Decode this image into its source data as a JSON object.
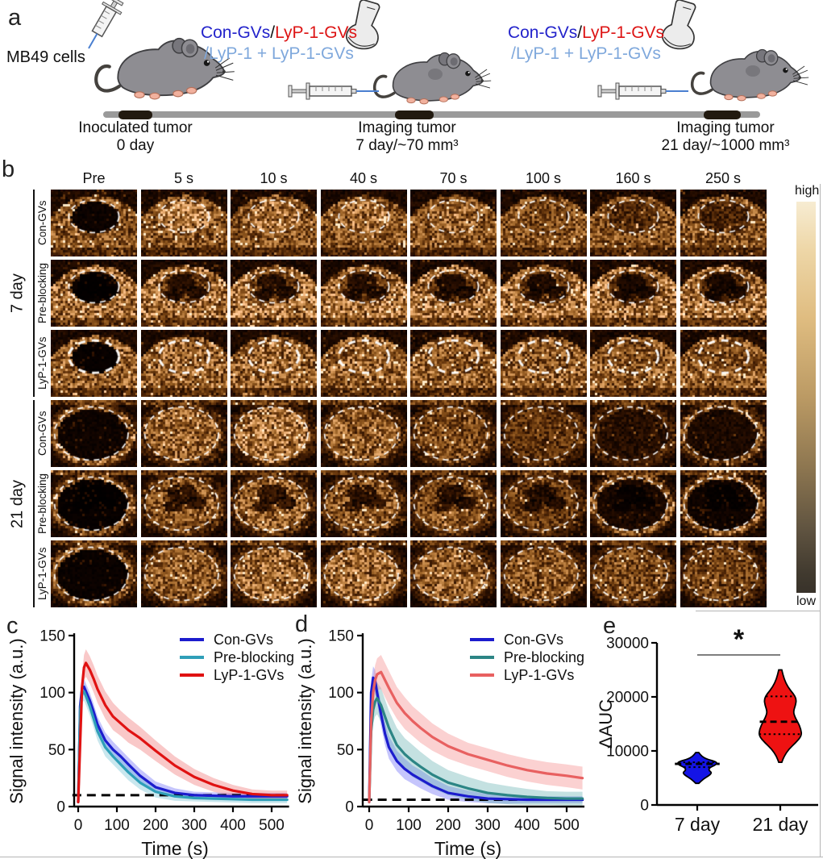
{
  "panel_a": {
    "label": "a",
    "mb49_label": "MB49 cells",
    "agents": {
      "blue": "Con-GVs",
      "slash": "/",
      "red": "LyP-1-GVs",
      "line2": "/LyP-1 + LyP-1-GVs"
    },
    "agent_colors": {
      "blue": "#2323cb",
      "red": "#dd1414",
      "light_blue": "#7fa8dc",
      "slash": "#111111"
    },
    "milestones": [
      {
        "line1": "Inoculated tumor",
        "line2": "0 day"
      },
      {
        "line1": "Imaging tumor",
        "line2": "7 day/~70 mm³"
      },
      {
        "line1": "Imaging tumor",
        "line2": "21 day/~1000 mm³"
      }
    ]
  },
  "panel_b": {
    "label": "b",
    "column_headers": [
      "Pre",
      "5 s",
      "10 s",
      "40 s",
      "70 s",
      "100 s",
      "160 s",
      "250 s"
    ],
    "row_groups": [
      {
        "label": "7 day",
        "rows": [
          "Con-GVs",
          "Pre-blocking",
          "LyP-1-GVs"
        ]
      },
      {
        "label": "21 day",
        "rows": [
          "Con-GVs",
          "Pre-blocking",
          "LyP-1-GVs"
        ]
      }
    ],
    "colorbar": {
      "high": "high",
      "low": "low"
    },
    "cells": [
      {
        "type": "dome",
        "outer": 0.55,
        "patches": false,
        "bold_dash": false,
        "interior": [
          0.05,
          0.72,
          0.7,
          0.66,
          0.62,
          0.5,
          0.34,
          0.3
        ]
      },
      {
        "type": "dome",
        "outer": 0.68,
        "patches": true,
        "bold_dash": false,
        "interior": [
          0.04,
          0.45,
          0.45,
          0.42,
          0.4,
          0.38,
          0.32,
          0.3
        ]
      },
      {
        "type": "dome",
        "outer": 0.6,
        "patches": false,
        "bold_dash": true,
        "interior": [
          0.03,
          0.62,
          0.66,
          0.62,
          0.58,
          0.55,
          0.52,
          0.5
        ]
      },
      {
        "type": "round",
        "outer": 0.32,
        "patches": false,
        "bold_dash": false,
        "interior": [
          0.06,
          0.62,
          0.68,
          0.6,
          0.52,
          0.38,
          0.16,
          0.12
        ]
      },
      {
        "type": "round",
        "outer": 0.3,
        "patches": true,
        "bold_dash": false,
        "interior": [
          0.03,
          0.55,
          0.6,
          0.55,
          0.52,
          0.42,
          0.1,
          0.06
        ]
      },
      {
        "type": "round",
        "outer": 0.32,
        "patches": false,
        "bold_dash": false,
        "interior": [
          0.04,
          0.58,
          0.64,
          0.64,
          0.6,
          0.56,
          0.5,
          0.46
        ]
      }
    ]
  },
  "chart_data": [
    {
      "id": "c",
      "panel_label": "c",
      "type": "line",
      "xlabel": "Time (s)",
      "ylabel": "Signal intensity (a.u.)",
      "xlim": [
        -20,
        545
      ],
      "ylim": [
        0,
        152
      ],
      "xticks": [
        0,
        100,
        200,
        300,
        400,
        500
      ],
      "yticks": [
        0,
        50,
        100,
        150
      ],
      "baseline": 10,
      "grid": false,
      "legend_position": "top-right",
      "x": [
        0,
        5,
        10,
        15,
        20,
        30,
        40,
        50,
        70,
        90,
        110,
        130,
        160,
        200,
        250,
        300,
        350,
        400,
        450,
        500,
        540
      ],
      "series": [
        {
          "name": "Con-GVs",
          "color": "#1c1ccd",
          "band_color": "rgba(90,90,245,0.35)",
          "values": [
            4,
            88,
            104,
            105,
            101,
            93,
            83,
            72,
            58,
            50,
            44,
            37,
            27,
            17,
            12,
            10,
            9.5,
            9,
            9,
            9,
            9
          ],
          "band": [
            2,
            7,
            7,
            7,
            7,
            7,
            7,
            7,
            7,
            7,
            6,
            6,
            6,
            5,
            4,
            3,
            3,
            3,
            3,
            3,
            3
          ]
        },
        {
          "name": "Pre-blocking",
          "color": "#2f9fb8",
          "band_color": "rgba(100,185,205,0.35)",
          "values": [
            4,
            84,
            99,
            101,
            97,
            88,
            77,
            66,
            52,
            44,
            37,
            30,
            21,
            13,
            9,
            7.5,
            7,
            6.5,
            6,
            6,
            6
          ],
          "band": [
            2,
            8,
            8,
            8,
            8,
            8,
            8,
            8,
            8,
            7,
            7,
            7,
            6,
            5,
            4,
            3,
            3,
            3,
            3,
            3,
            3
          ]
        },
        {
          "name": "LyP-1-GVs",
          "color": "#e01212",
          "band_color": "rgba(240,110,110,0.38)",
          "values": [
            4,
            55,
            105,
            122,
            126,
            120,
            112,
            103,
            89,
            79,
            73,
            67,
            60,
            49,
            36,
            26,
            19,
            14,
            11,
            10,
            10
          ],
          "band": [
            2,
            8,
            10,
            11,
            12,
            12,
            12,
            12,
            12,
            12,
            11,
            11,
            10,
            9,
            8,
            7,
            6,
            5,
            4,
            4,
            4
          ]
        }
      ]
    },
    {
      "id": "d",
      "panel_label": "d",
      "type": "line",
      "xlabel": "Time (s)",
      "ylabel": "Signal intensity (a.u.)",
      "xlim": [
        -20,
        545
      ],
      "ylim": [
        0,
        152
      ],
      "xticks": [
        0,
        100,
        200,
        300,
        400,
        500
      ],
      "yticks": [
        0,
        50,
        100,
        150
      ],
      "baseline": 6,
      "grid": false,
      "legend_position": "top-right",
      "x": [
        0,
        5,
        10,
        15,
        20,
        30,
        40,
        50,
        70,
        90,
        110,
        130,
        160,
        200,
        250,
        300,
        350,
        400,
        450,
        500,
        540
      ],
      "series": [
        {
          "name": "Con-GVs",
          "color": "#1c1ccd",
          "band_color": "rgba(90,90,245,0.35)",
          "values": [
            4,
            100,
            113,
            110,
            100,
            81,
            64,
            52,
            40,
            33,
            28,
            24,
            18,
            12,
            9,
            7,
            6.5,
            6,
            6,
            6,
            6
          ],
          "band": [
            2,
            10,
            10,
            10,
            10,
            10,
            10,
            10,
            9,
            9,
            8,
            8,
            7,
            6,
            5,
            4,
            4,
            3,
            3,
            3,
            3
          ]
        },
        {
          "name": "Pre-blocking",
          "color": "#2c8585",
          "band_color": "rgba(100,175,175,0.38)",
          "values": [
            4,
            66,
            85,
            92,
            95,
            89,
            79,
            69,
            54,
            46,
            40,
            35,
            28,
            21,
            16,
            12,
            10,
            8.5,
            7.5,
            7,
            7
          ],
          "band": [
            2,
            10,
            12,
            13,
            14,
            15,
            15,
            15,
            15,
            14,
            14,
            13,
            12,
            11,
            10,
            9,
            8,
            7,
            6,
            6,
            6
          ]
        },
        {
          "name": "LyP-1-GVs",
          "color": "#e86060",
          "band_color": "rgba(245,140,140,0.40)",
          "values": [
            4,
            75,
            100,
            111,
            116,
            118,
            111,
            104,
            91,
            82,
            75,
            69,
            61,
            53,
            46,
            41,
            36,
            32,
            29,
            27,
            25
          ],
          "band": [
            2,
            10,
            12,
            13,
            14,
            15,
            15,
            15,
            14,
            14,
            13,
            13,
            12,
            11,
            10,
            10,
            10,
            10,
            10,
            10,
            10
          ]
        }
      ]
    },
    {
      "id": "e",
      "panel_label": "e",
      "type": "violin",
      "ylabel": "ΔAUC",
      "ylim": [
        0,
        30000
      ],
      "yticks": [
        0,
        10000,
        20000,
        30000
      ],
      "categories": [
        "7 day",
        "21 day"
      ],
      "violins": [
        {
          "name": "7 day",
          "color": "#1414e6",
          "median": 7600,
          "q1": 7000,
          "q3": 7900,
          "min": 4000,
          "max": 9700,
          "profile": [
            [
              4000,
              0.02
            ],
            [
              4800,
              0.08
            ],
            [
              5500,
              0.16
            ],
            [
              6000,
              0.19
            ],
            [
              6400,
              0.15
            ],
            [
              6900,
              0.16
            ],
            [
              7400,
              0.24
            ],
            [
              7800,
              0.26
            ],
            [
              8100,
              0.22
            ],
            [
              8500,
              0.12
            ],
            [
              9000,
              0.06
            ],
            [
              9700,
              0.02
            ]
          ]
        },
        {
          "name": "21 day",
          "color": "#ee1212",
          "median": 15400,
          "q1": 13100,
          "q3": 20100,
          "min": 7900,
          "max": 25000,
          "profile": [
            [
              7900,
              0.02
            ],
            [
              9000,
              0.05
            ],
            [
              10300,
              0.11
            ],
            [
              11500,
              0.2
            ],
            [
              12800,
              0.28
            ],
            [
              14000,
              0.27
            ],
            [
              15300,
              0.23
            ],
            [
              16300,
              0.19
            ],
            [
              17300,
              0.17
            ],
            [
              18500,
              0.2
            ],
            [
              19600,
              0.21
            ],
            [
              20600,
              0.17
            ],
            [
              21800,
              0.1
            ],
            [
              23300,
              0.05
            ],
            [
              25000,
              0.02
            ]
          ]
        }
      ],
      "significance": {
        "label": "*",
        "between": [
          "7 day",
          "21 day"
        ]
      }
    }
  ]
}
